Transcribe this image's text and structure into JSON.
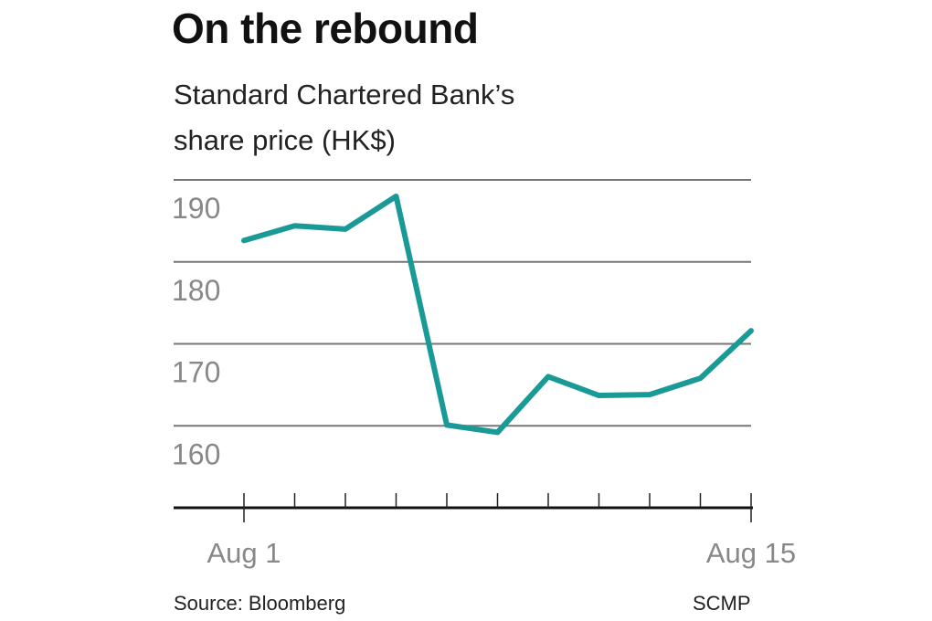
{
  "chart_data": {
    "type": "line",
    "title": "On the rebound",
    "subtitle_lines": [
      "Standard Chartered Bank’s",
      "share price (HK$)"
    ],
    "xlabel": "",
    "ylabel": "",
    "x": [
      1,
      2,
      3,
      4,
      5,
      6,
      7,
      8,
      9,
      10,
      11
    ],
    "x_tick_labels": [
      {
        "index": 0,
        "label": "Aug 1"
      },
      {
        "index": 10,
        "label": "Aug 15"
      }
    ],
    "series": [
      {
        "name": "Share price (HK$)",
        "color": "#1a9a96",
        "values": [
          182.6,
          184.4,
          184.0,
          188.0,
          160.1,
          159.2,
          166.0,
          163.7,
          163.8,
          165.8,
          171.6
        ]
      }
    ],
    "yticks": [
      160,
      170,
      180,
      190
    ],
    "ylim": [
      150,
      190
    ],
    "grid": true,
    "source": "Source: Bloomberg",
    "credit": "SCMP"
  }
}
